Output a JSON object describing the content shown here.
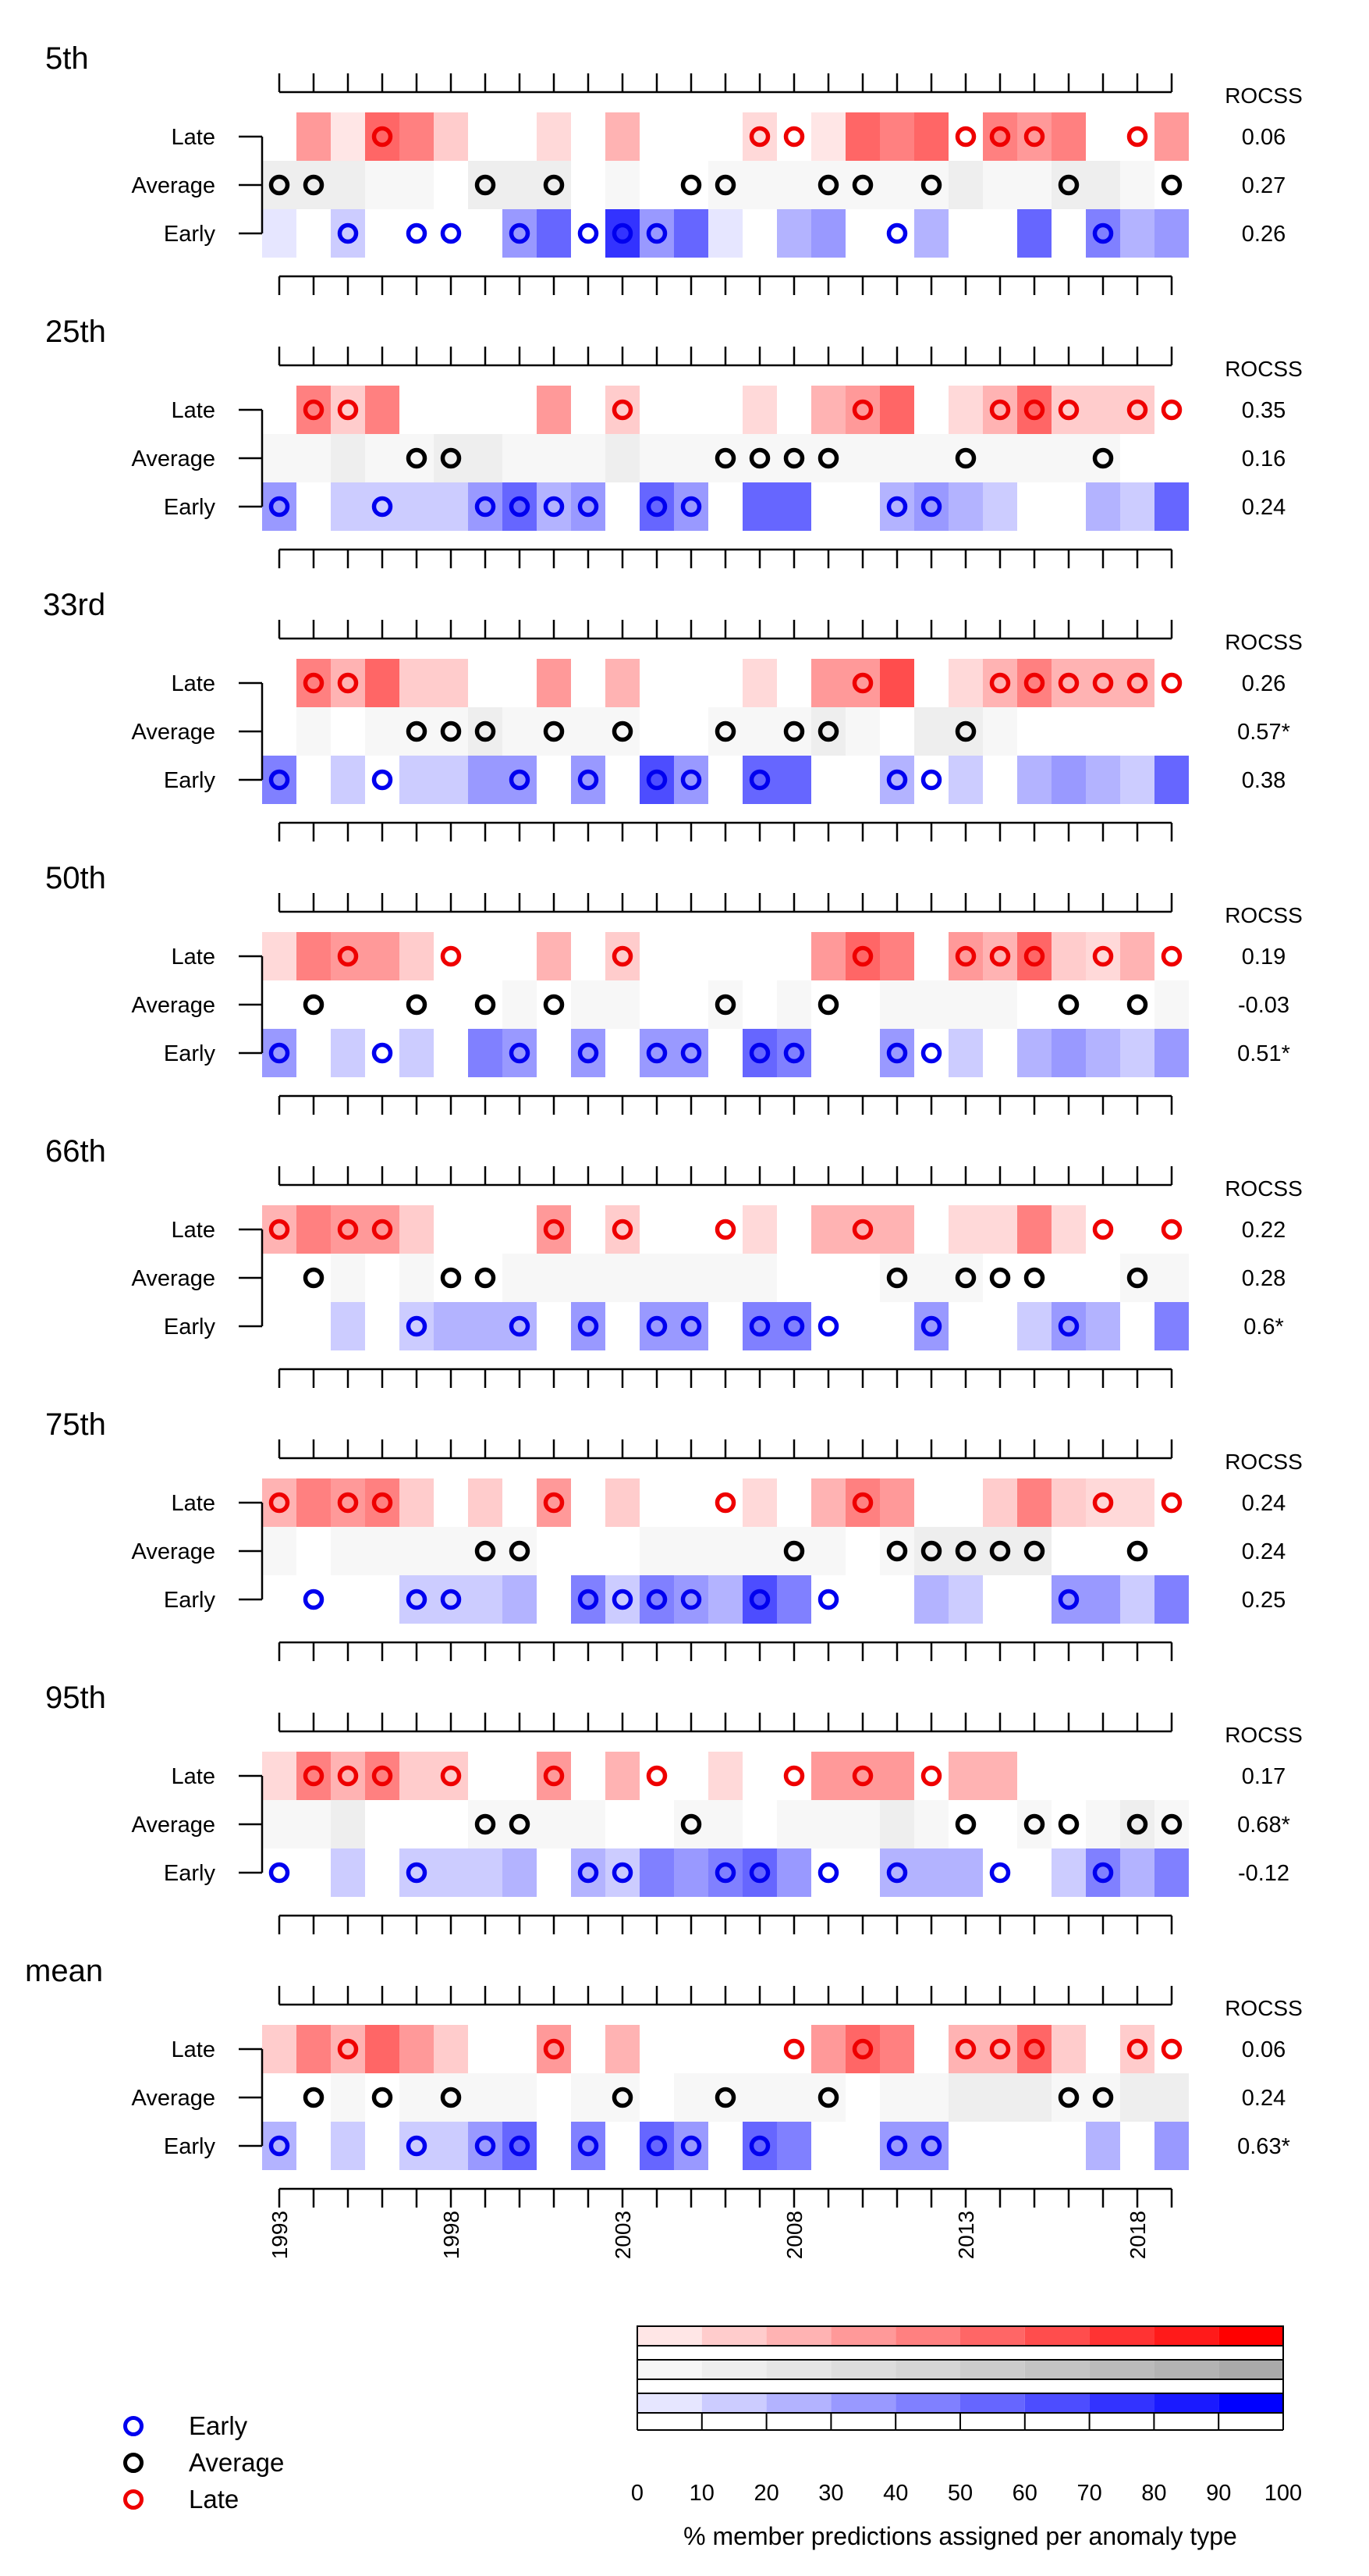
{
  "chart_data": {
    "type": "heatmap",
    "years": [
      1993,
      1994,
      1995,
      1996,
      1997,
      1998,
      1999,
      2000,
      2001,
      2002,
      2003,
      2004,
      2005,
      2006,
      2007,
      2008,
      2009,
      2010,
      2011,
      2012,
      2013,
      2014,
      2015,
      2016,
      2017,
      2018,
      2019
    ],
    "year_tick_labels": [
      "1993",
      "1998",
      "2003",
      "2008",
      "2013",
      "2018"
    ],
    "row_labels": [
      "Late",
      "Average",
      "Early"
    ],
    "score_header": "ROCSS",
    "panels": [
      {
        "title": "5th",
        "scores": [
          "0.06",
          "0.27",
          "0.26"
        ],
        "late": [
          0,
          40,
          10,
          60,
          50,
          20,
          0,
          0,
          15,
          0,
          30,
          0,
          0,
          0,
          15,
          0,
          10,
          60,
          50,
          60,
          0,
          50,
          40,
          50,
          0,
          0,
          40
        ],
        "average": [
          20,
          20,
          20,
          10,
          10,
          0,
          20,
          20,
          20,
          0,
          10,
          0,
          0,
          10,
          10,
          10,
          10,
          10,
          10,
          10,
          20,
          10,
          10,
          20,
          20,
          10,
          0
        ],
        "early": [
          10,
          0,
          20,
          0,
          0,
          0,
          0,
          40,
          60,
          0,
          80,
          40,
          60,
          10,
          0,
          30,
          40,
          0,
          0,
          30,
          0,
          0,
          60,
          0,
          50,
          30,
          40
        ],
        "obs": [
          "A",
          "A",
          "E",
          "L",
          "E",
          "E",
          "A",
          "E",
          "A",
          "E",
          "E",
          "E",
          "A",
          "A",
          "L",
          "L",
          "A",
          "A",
          "E",
          "A",
          "L",
          "L",
          "L",
          "A",
          "E",
          "L",
          "A"
        ]
      },
      {
        "title": "25th",
        "scores": [
          "0.35",
          "0.16",
          "0.24"
        ],
        "late": [
          0,
          50,
          20,
          50,
          0,
          0,
          0,
          0,
          40,
          0,
          20,
          0,
          0,
          0,
          15,
          0,
          30,
          40,
          60,
          0,
          15,
          30,
          60,
          20,
          20,
          20,
          0
        ],
        "average": [
          10,
          10,
          20,
          10,
          10,
          20,
          20,
          10,
          10,
          10,
          20,
          10,
          10,
          10,
          10,
          10,
          10,
          10,
          10,
          10,
          10,
          10,
          10,
          10,
          10,
          0,
          0
        ],
        "early": [
          40,
          0,
          20,
          20,
          20,
          20,
          40,
          60,
          30,
          40,
          0,
          60,
          40,
          0,
          60,
          60,
          0,
          0,
          30,
          40,
          30,
          20,
          0,
          0,
          30,
          20,
          60
        ],
        "obs": [
          "E",
          "L",
          "L",
          "E",
          "A",
          "A",
          "E",
          "E",
          "E",
          "E",
          "L",
          "E",
          "E",
          "A",
          "A",
          "A",
          "A",
          "L",
          "E",
          "E",
          "A",
          "L",
          "L",
          "L",
          "A",
          "L",
          "L"
        ]
      },
      {
        "title": "33rd",
        "scores": [
          "0.26",
          "0.57*",
          "0.38"
        ],
        "late": [
          0,
          50,
          30,
          60,
          20,
          20,
          0,
          0,
          40,
          0,
          30,
          0,
          0,
          0,
          15,
          0,
          40,
          40,
          70,
          0,
          15,
          30,
          50,
          30,
          30,
          30,
          0
        ],
        "average": [
          0,
          10,
          0,
          10,
          10,
          10,
          20,
          10,
          10,
          10,
          10,
          0,
          0,
          10,
          10,
          10,
          20,
          10,
          0,
          20,
          20,
          10,
          0,
          0,
          0,
          0,
          0
        ],
        "early": [
          50,
          0,
          20,
          0,
          20,
          20,
          40,
          40,
          0,
          40,
          0,
          70,
          40,
          0,
          60,
          60,
          0,
          0,
          30,
          0,
          20,
          0,
          30,
          40,
          30,
          20,
          60
        ],
        "obs": [
          "E",
          "L",
          "L",
          "E",
          "A",
          "A",
          "A",
          "E",
          "A",
          "E",
          "A",
          "E",
          "E",
          "A",
          "E",
          "A",
          "A",
          "L",
          "E",
          "E",
          "A",
          "L",
          "L",
          "L",
          "L",
          "L",
          "L"
        ]
      },
      {
        "title": "50th",
        "scores": [
          "0.19",
          "-0.03",
          "0.51*"
        ],
        "late": [
          15,
          50,
          40,
          40,
          20,
          0,
          0,
          0,
          30,
          0,
          20,
          0,
          0,
          0,
          0,
          0,
          40,
          60,
          50,
          0,
          40,
          30,
          60,
          20,
          15,
          30,
          0
        ],
        "average": [
          0,
          0,
          0,
          0,
          0,
          0,
          0,
          10,
          0,
          10,
          10,
          0,
          0,
          10,
          0,
          10,
          0,
          0,
          10,
          10,
          10,
          10,
          0,
          0,
          0,
          0,
          10
        ],
        "early": [
          40,
          0,
          20,
          0,
          20,
          0,
          50,
          40,
          0,
          40,
          0,
          40,
          40,
          0,
          60,
          50,
          0,
          0,
          40,
          0,
          20,
          0,
          30,
          40,
          30,
          20,
          40
        ],
        "obs": [
          "E",
          "A",
          "L",
          "E",
          "A",
          "L",
          "A",
          "E",
          "A",
          "E",
          "L",
          "E",
          "E",
          "A",
          "E",
          "E",
          "A",
          "L",
          "E",
          "E",
          "L",
          "L",
          "L",
          "A",
          "L",
          "A",
          "L"
        ]
      },
      {
        "title": "66th",
        "scores": [
          "0.22",
          "0.28",
          "0.6*"
        ],
        "late": [
          30,
          50,
          40,
          40,
          20,
          0,
          0,
          0,
          40,
          0,
          20,
          0,
          0,
          0,
          15,
          0,
          30,
          30,
          30,
          0,
          15,
          15,
          50,
          15,
          0,
          0,
          0
        ],
        "average": [
          0,
          0,
          10,
          0,
          10,
          0,
          0,
          10,
          10,
          10,
          10,
          10,
          10,
          10,
          10,
          0,
          0,
          0,
          10,
          10,
          10,
          0,
          0,
          0,
          0,
          10,
          10
        ],
        "early": [
          0,
          0,
          20,
          0,
          20,
          30,
          30,
          30,
          0,
          40,
          0,
          40,
          40,
          0,
          50,
          50,
          0,
          0,
          0,
          40,
          0,
          0,
          20,
          40,
          30,
          0,
          50
        ],
        "obs": [
          "L",
          "A",
          "L",
          "L",
          "E",
          "A",
          "A",
          "E",
          "L",
          "E",
          "L",
          "E",
          "E",
          "L",
          "E",
          "E",
          "E",
          "L",
          "A",
          "E",
          "A",
          "A",
          "A",
          "E",
          "L",
          "A",
          "L"
        ]
      },
      {
        "title": "75th",
        "scores": [
          "0.24",
          "0.24",
          "0.25"
        ],
        "late": [
          30,
          50,
          40,
          50,
          20,
          0,
          20,
          0,
          40,
          0,
          20,
          0,
          0,
          0,
          15,
          0,
          30,
          50,
          40,
          0,
          0,
          20,
          50,
          20,
          15,
          15,
          0
        ],
        "average": [
          10,
          0,
          10,
          10,
          10,
          10,
          10,
          10,
          0,
          0,
          0,
          10,
          10,
          10,
          10,
          10,
          10,
          0,
          10,
          20,
          20,
          20,
          20,
          0,
          0,
          0,
          0
        ],
        "early": [
          0,
          0,
          0,
          0,
          20,
          20,
          20,
          30,
          0,
          50,
          20,
          50,
          40,
          30,
          70,
          50,
          0,
          0,
          0,
          30,
          20,
          0,
          0,
          40,
          40,
          20,
          50
        ],
        "obs": [
          "L",
          "E",
          "L",
          "L",
          "E",
          "E",
          "A",
          "A",
          "L",
          "E",
          "E",
          "E",
          "E",
          "L",
          "E",
          "A",
          "E",
          "L",
          "A",
          "A",
          "A",
          "A",
          "A",
          "E",
          "L",
          "A",
          "L"
        ]
      },
      {
        "title": "95th",
        "scores": [
          "0.17",
          "0.68*",
          "-0.12"
        ],
        "late": [
          15,
          50,
          30,
          50,
          20,
          20,
          0,
          0,
          40,
          0,
          30,
          0,
          0,
          15,
          0,
          0,
          40,
          40,
          40,
          0,
          30,
          30,
          0,
          0,
          0,
          0,
          0
        ],
        "average": [
          10,
          10,
          20,
          0,
          0,
          0,
          10,
          10,
          10,
          10,
          0,
          0,
          10,
          10,
          0,
          10,
          10,
          10,
          20,
          10,
          0,
          0,
          10,
          0,
          10,
          20,
          10
        ],
        "early": [
          0,
          0,
          20,
          0,
          20,
          20,
          20,
          30,
          0,
          30,
          20,
          50,
          40,
          50,
          60,
          40,
          0,
          0,
          30,
          30,
          30,
          0,
          0,
          20,
          50,
          30,
          50
        ],
        "obs": [
          "E",
          "L",
          "L",
          "L",
          "E",
          "L",
          "A",
          "A",
          "L",
          "E",
          "E",
          "L",
          "A",
          "E",
          "E",
          "L",
          "E",
          "L",
          "E",
          "L",
          "A",
          "E",
          "A",
          "A",
          "E",
          "A",
          "A"
        ]
      },
      {
        "title": "mean",
        "scores": [
          "0.06",
          "0.24",
          "0.63*"
        ],
        "late": [
          20,
          50,
          30,
          60,
          40,
          20,
          0,
          0,
          40,
          0,
          30,
          0,
          0,
          0,
          0,
          0,
          40,
          60,
          50,
          0,
          30,
          30,
          60,
          20,
          0,
          20,
          0
        ],
        "average": [
          0,
          0,
          10,
          0,
          10,
          10,
          10,
          10,
          0,
          10,
          10,
          0,
          10,
          10,
          10,
          10,
          10,
          0,
          10,
          10,
          20,
          20,
          20,
          10,
          10,
          20,
          20
        ],
        "early": [
          30,
          0,
          20,
          0,
          20,
          20,
          40,
          60,
          0,
          50,
          0,
          60,
          40,
          0,
          60,
          50,
          0,
          0,
          40,
          40,
          0,
          0,
          0,
          0,
          30,
          0,
          40
        ],
        "obs": [
          "E",
          "A",
          "L",
          "A",
          "E",
          "A",
          "E",
          "E",
          "L",
          "E",
          "A",
          "E",
          "E",
          "A",
          "E",
          "L",
          "A",
          "L",
          "E",
          "E",
          "L",
          "L",
          "L",
          "A",
          "A",
          "L",
          "L"
        ]
      }
    ],
    "legend": {
      "entries": [
        {
          "label": "Early",
          "color": "#0000ee"
        },
        {
          "label": "Average",
          "color": "#000000"
        },
        {
          "label": "Late",
          "color": "#ee0000"
        }
      ]
    },
    "colorbar": {
      "ticks": [
        "0",
        "10",
        "20",
        "30",
        "40",
        "50",
        "60",
        "70",
        "80",
        "90",
        "100"
      ],
      "label": "% member predictions assigned per anomaly type",
      "late_color": "#ff0000",
      "average_color": "#aaaaaa",
      "early_color": "#0000ff"
    }
  }
}
